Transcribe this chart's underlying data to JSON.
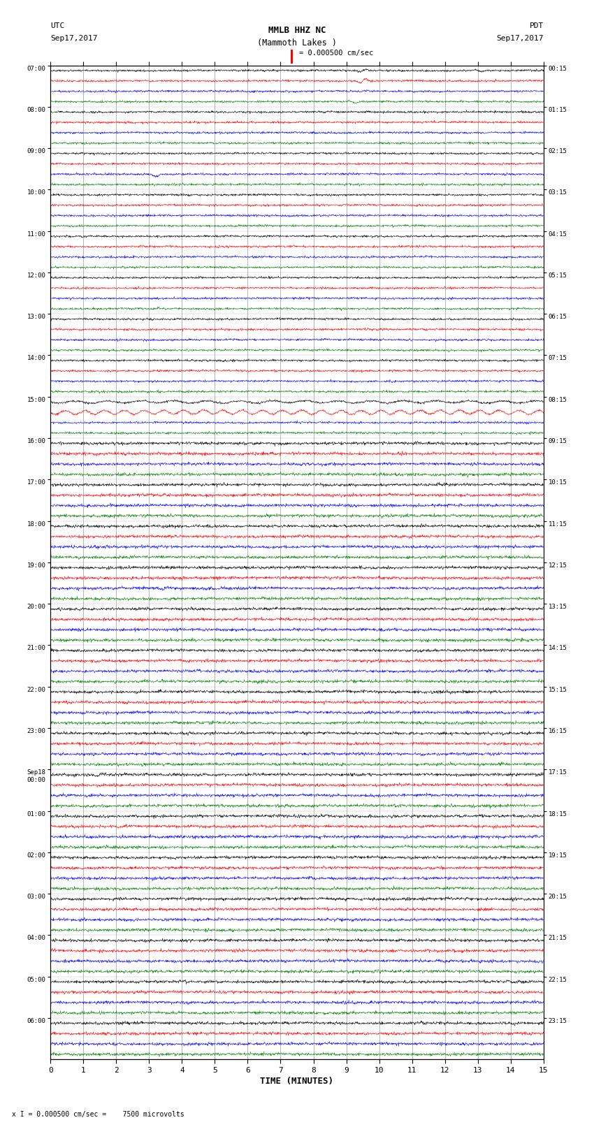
{
  "title_line1": "MMLB HHZ NC",
  "title_line2": "(Mammoth Lakes )",
  "scale_label": "= 0.000500 cm/sec",
  "left_label_top": "UTC",
  "left_label_date": "Sep17,2017",
  "right_label_top": "PDT",
  "right_label_date": "Sep17,2017",
  "bottom_xlabel": "TIME (MINUTES)",
  "footer_text": "x I = 0.000500 cm/sec =    7500 microvolts",
  "utc_times": [
    "07:00",
    "08:00",
    "09:00",
    "10:00",
    "11:00",
    "12:00",
    "13:00",
    "14:00",
    "15:00",
    "16:00",
    "17:00",
    "18:00",
    "19:00",
    "20:00",
    "21:00",
    "22:00",
    "23:00",
    "Sep18\n00:00",
    "01:00",
    "02:00",
    "03:00",
    "04:00",
    "05:00",
    "06:00"
  ],
  "pdt_times": [
    "00:15",
    "01:15",
    "02:15",
    "03:15",
    "04:15",
    "05:15",
    "06:15",
    "07:15",
    "08:15",
    "09:15",
    "10:15",
    "11:15",
    "12:15",
    "13:15",
    "14:15",
    "15:15",
    "16:15",
    "17:15",
    "18:15",
    "19:15",
    "20:15",
    "21:15",
    "22:15",
    "23:15"
  ],
  "colors_cycle": [
    "black",
    "red",
    "blue",
    "green"
  ],
  "bg_color": "#ffffff",
  "num_time_slots": 24,
  "traces_per_slot": 4,
  "minutes_per_trace": 15,
  "samples_per_minute": 100
}
